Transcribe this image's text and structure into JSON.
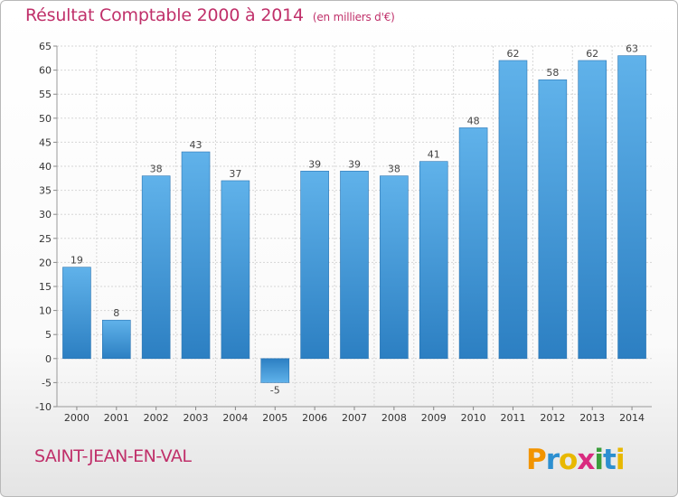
{
  "header": {
    "title": "Résultat Comptable 2000 à 2014",
    "unit": "(en milliers d'€)"
  },
  "footer": {
    "place": "SAINT-JEAN-EN-VAL",
    "brand": "Proxiti"
  },
  "colors": {
    "title": "#c0306a",
    "bar_light": "#5fb1ea",
    "bar_dark": "#2c7fc2",
    "grid": "#d6d6d6"
  },
  "chart_data": {
    "type": "bar",
    "title": "Résultat Comptable 2000 à 2014",
    "subtitle": "(en milliers d'€)",
    "xlabel": "",
    "ylabel": "",
    "categories": [
      "2000",
      "2001",
      "2002",
      "2003",
      "2004",
      "2005",
      "2006",
      "2007",
      "2008",
      "2009",
      "2010",
      "2011",
      "2012",
      "2013",
      "2014"
    ],
    "values": [
      19,
      8,
      38,
      43,
      37,
      -5,
      39,
      39,
      38,
      41,
      48,
      62,
      58,
      62,
      63
    ],
    "ylim": [
      -10,
      65
    ],
    "yticks": [
      -10,
      -5,
      0,
      5,
      10,
      15,
      20,
      25,
      30,
      35,
      40,
      45,
      50,
      55,
      60,
      65
    ],
    "grid": true,
    "legend": "none",
    "data_labels": true
  }
}
